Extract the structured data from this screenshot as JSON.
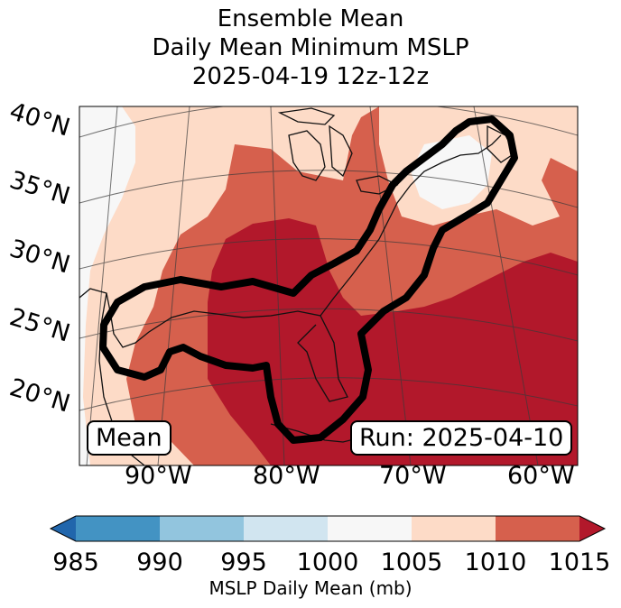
{
  "title": {
    "line1": "Ensemble Mean",
    "line2": "Daily Mean Minimum MSLP",
    "line3": "2025-04-19 12z-12z"
  },
  "map": {
    "lat_labels": [
      "40°N",
      "35°N",
      "30°N",
      "25°N",
      "20°N"
    ],
    "lon_labels": [
      "90°W",
      "80°W",
      "70°W",
      "60°W"
    ],
    "mean_label": "Mean",
    "run_label": "Run: 2025-04-10"
  },
  "colorbar": {
    "ticks": [
      "985",
      "990",
      "995",
      "1000",
      "1005",
      "1010",
      "1015"
    ],
    "label": "MSLP Daily Mean (mb)",
    "colors": {
      "under": "#2166ac",
      "c985_990": "#4393c3",
      "c990_995": "#92c5de",
      "c995_1000": "#d1e5f0",
      "c1000_1005": "#f7f7f7",
      "c1005_1010": "#fddbc7",
      "c1010_1015": "#d6604d",
      "over": "#b2182b"
    }
  }
}
